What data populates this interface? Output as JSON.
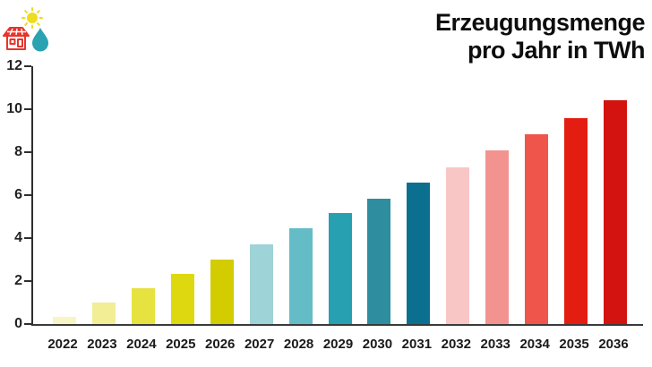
{
  "page": {
    "background": "#ffffff"
  },
  "header": {
    "title_line1": "Erzeugungsmenge",
    "title_line2": "pro Jahr in TWh",
    "icons": [
      {
        "name": "sun-icon",
        "color": "#eddc20"
      },
      {
        "name": "solar-house-icon",
        "color": "#e5352c"
      },
      {
        "name": "water-drop-icon",
        "color": "#2aa2b2"
      }
    ]
  },
  "chart_data": {
    "type": "bar",
    "title": "Erzeugungsmenge pro Jahr in TWh",
    "xlabel": "",
    "ylabel": "",
    "ylim": [
      0,
      12
    ],
    "yticks": [
      0,
      2,
      4,
      6,
      8,
      10,
      12
    ],
    "grid": false,
    "legend": false,
    "axis_color": "#2e2e2e",
    "categories": [
      "2022",
      "2023",
      "2024",
      "2025",
      "2026",
      "2027",
      "2028",
      "2029",
      "2030",
      "2031",
      "2032",
      "2033",
      "2034",
      "2035",
      "2036"
    ],
    "values": [
      0.35,
      1.0,
      1.65,
      2.35,
      3.0,
      3.7,
      4.45,
      5.15,
      5.85,
      6.6,
      7.3,
      8.1,
      8.85,
      9.6,
      10.4
    ],
    "bar_colors": [
      "#f7f5c4",
      "#f1ee96",
      "#e6e23f",
      "#ded810",
      "#d3cc00",
      "#9ed3d7",
      "#64bcc7",
      "#27a0b1",
      "#2f8da0",
      "#0b7090",
      "#f8c6c5",
      "#f29390",
      "#ef554b",
      "#e41d12",
      "#d2130f"
    ]
  }
}
